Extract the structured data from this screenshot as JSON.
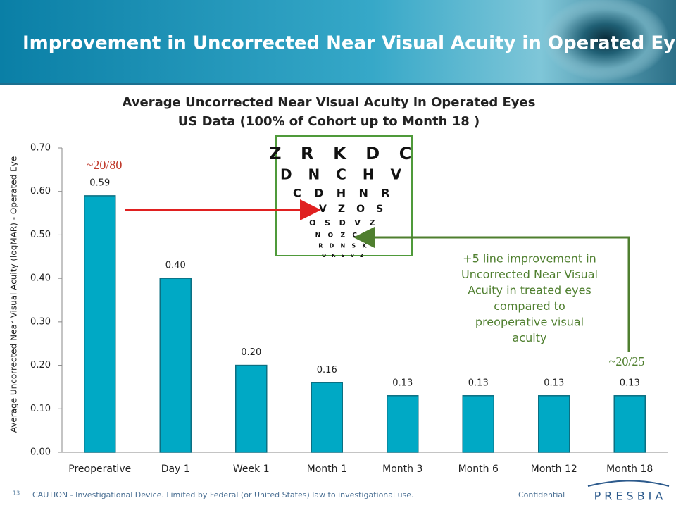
{
  "slide": {
    "title": "Improvement in Uncorrected Near Visual Acuity in Operated Eyes",
    "page_number": "13",
    "footer": "CAUTION - Investigational Device. Limited by Federal  (or United States) law to investigational use.",
    "confidential": "Confidential",
    "logo": "PRESBIA",
    "eye_chart_rows": [
      "Z R K D C",
      "D N C H V",
      "C D H N R",
      "R V Z O S",
      "O S D V Z",
      "N O Z C D",
      "R D N S K",
      "O K S V Z"
    ]
  },
  "chart_data": {
    "type": "bar",
    "title": [
      "Average Uncorrected Near Visual Acuity in Operated Eyes",
      "US Data (100% of Cohort up to Month 18 )"
    ],
    "y_label": "Average Uncorrected Near Visual Acuity (logMAR) - Operated Eye",
    "categories": [
      "Preoperative",
      "Day 1",
      "Week 1",
      "Month 1",
      "Month 3",
      "Month 6",
      "Month 12",
      "Month 18"
    ],
    "values": [
      0.59,
      0.4,
      0.2,
      0.16,
      0.13,
      0.13,
      0.13,
      0.13
    ],
    "value_labels": [
      "0.59",
      "0.40",
      "0.20",
      "0.16",
      "0.13",
      "0.13",
      "0.13",
      "0.13"
    ],
    "color": "#00a9c5",
    "ylim": [
      0,
      0.7
    ],
    "yticks": [
      {
        "value": 0,
        "label": "0.00"
      },
      {
        "value": 0.1,
        "label": "0.10"
      },
      {
        "value": 0.2,
        "label": "0.20"
      },
      {
        "value": 0.3,
        "label": "0.30"
      },
      {
        "value": 0.4,
        "label": "0.40"
      },
      {
        "value": 0.5,
        "label": "0.50"
      },
      {
        "value": 0.6,
        "label": "0.60"
      },
      {
        "value": 0.7,
        "label": "0.70"
      }
    ],
    "annotations": {
      "start": "~20/80",
      "end": "~20/25",
      "note": [
        "+5 line improvement in",
        "Uncorrected Near Visual",
        "Acuity in treated eyes",
        "compared to",
        "preoperative visual",
        "acuity"
      ]
    }
  }
}
